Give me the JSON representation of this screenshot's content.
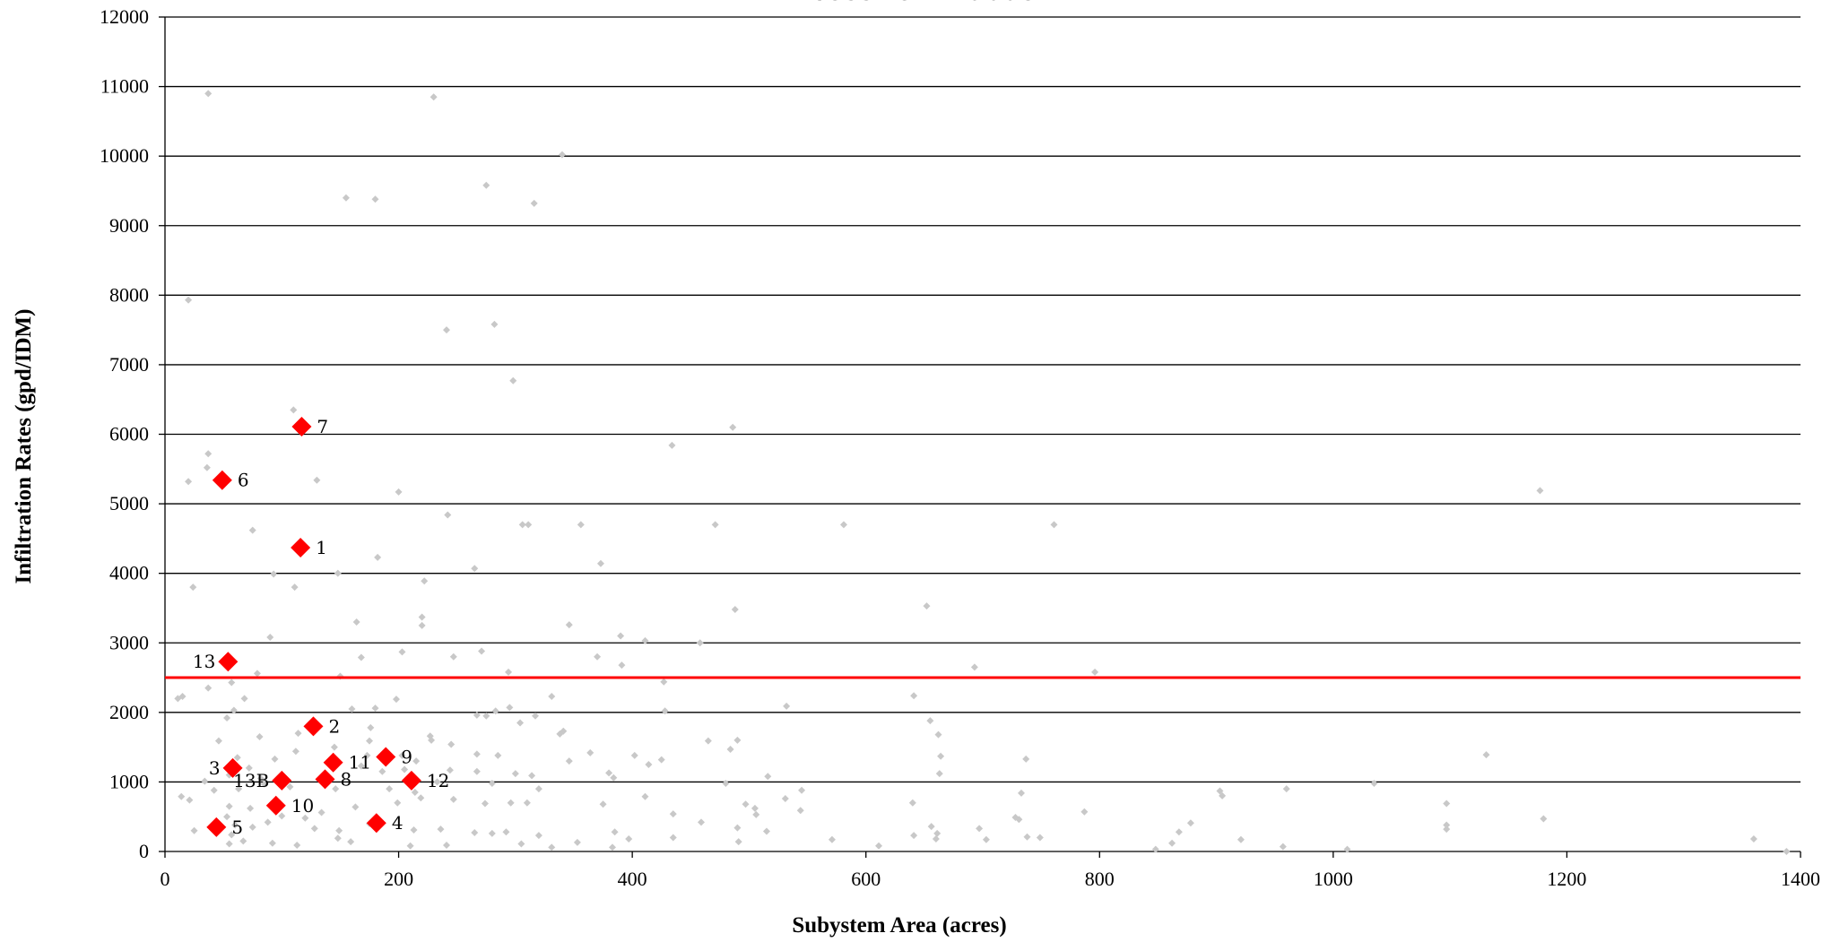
{
  "chart_data": {
    "type": "scatter",
    "title": "Excessive Infiltration",
    "xlabel": "Subystem Area (acres)",
    "ylabel": "Infiltration Rates (gpd/IDM)",
    "xlim": [
      0,
      1400
    ],
    "ylim": [
      0,
      12000
    ],
    "x_ticks": [
      0,
      200,
      400,
      600,
      800,
      1000,
      1200,
      1400
    ],
    "y_ticks": [
      0,
      1000,
      2000,
      3000,
      4000,
      5000,
      6000,
      7000,
      8000,
      9000,
      10000,
      11000,
      12000
    ],
    "grid": "horizontal",
    "threshold": {
      "y": 2500,
      "color": "#ff0000"
    },
    "colors": {
      "background_series": "#c8c8c8",
      "highlight_series": "#ff0000"
    },
    "series": [
      {
        "values": [
          [
            37,
            10900
          ],
          [
            230,
            10850
          ],
          [
            340,
            10020
          ],
          [
            275,
            9580
          ],
          [
            155,
            9400
          ],
          [
            180,
            9380
          ],
          [
            316,
            9320
          ],
          [
            20,
            7930
          ],
          [
            282,
            7580
          ],
          [
            241,
            7500
          ],
          [
            298,
            6770
          ],
          [
            110,
            6350
          ],
          [
            486,
            6100
          ],
          [
            37,
            5720
          ],
          [
            36,
            5520
          ],
          [
            20,
            5320
          ],
          [
            130,
            5340
          ],
          [
            434,
            5840
          ],
          [
            200,
            5170
          ],
          [
            1177,
            5190
          ],
          [
            242,
            4840
          ],
          [
            306,
            4700
          ],
          [
            311,
            4700
          ],
          [
            356,
            4700
          ],
          [
            471,
            4700
          ],
          [
            581,
            4700
          ],
          [
            761,
            4700
          ],
          [
            75,
            4620
          ],
          [
            182,
            4230
          ],
          [
            373,
            4140
          ],
          [
            265,
            4070
          ],
          [
            148,
            4000
          ],
          [
            93,
            3990
          ],
          [
            222,
            3890
          ],
          [
            111,
            3800
          ],
          [
            24,
            3800
          ],
          [
            488,
            3480
          ],
          [
            652,
            3530
          ],
          [
            220,
            3370
          ],
          [
            220,
            3250
          ],
          [
            164,
            3300
          ],
          [
            346,
            3260
          ],
          [
            90,
            3080
          ],
          [
            390,
            3100
          ],
          [
            411,
            3030
          ],
          [
            458,
            3000
          ],
          [
            203,
            2870
          ],
          [
            271,
            2880
          ],
          [
            168,
            2790
          ],
          [
            247,
            2800
          ],
          [
            370,
            2800
          ],
          [
            391,
            2680
          ],
          [
            693,
            2650
          ],
          [
            79,
            2560
          ],
          [
            150,
            2520
          ],
          [
            294,
            2580
          ],
          [
            796,
            2580
          ],
          [
            57,
            2430
          ],
          [
            427,
            2440
          ],
          [
            37,
            2350
          ],
          [
            11,
            2200
          ],
          [
            15,
            2230
          ],
          [
            68,
            2200
          ],
          [
            198,
            2190
          ],
          [
            641,
            2240
          ],
          [
            331,
            2230
          ],
          [
            180,
            2060
          ],
          [
            59,
            2030
          ],
          [
            53,
            1920
          ],
          [
            160,
            2050
          ],
          [
            283,
            2020
          ],
          [
            295,
            2070
          ],
          [
            267,
            1960
          ],
          [
            275,
            1950
          ],
          [
            317,
            1950
          ],
          [
            428,
            2020
          ],
          [
            532,
            2090
          ],
          [
            655,
            1880
          ],
          [
            304,
            1850
          ],
          [
            176,
            1780
          ],
          [
            114,
            1700
          ],
          [
            81,
            1650
          ],
          [
            46,
            1590
          ],
          [
            227,
            1660
          ],
          [
            338,
            1690
          ],
          [
            341,
            1730
          ],
          [
            465,
            1590
          ],
          [
            484,
            1470
          ],
          [
            490,
            1600
          ],
          [
            662,
            1680
          ],
          [
            228,
            1600
          ],
          [
            175,
            1590
          ],
          [
            145,
            1500
          ],
          [
            112,
            1440
          ],
          [
            94,
            1330
          ],
          [
            62,
            1350
          ],
          [
            72,
            1200
          ],
          [
            55,
            1100
          ],
          [
            82,
            1050
          ],
          [
            173,
            1380
          ],
          [
            203,
            1380
          ],
          [
            215,
            1300
          ],
          [
            245,
            1540
          ],
          [
            267,
            1400
          ],
          [
            285,
            1380
          ],
          [
            346,
            1300
          ],
          [
            364,
            1420
          ],
          [
            402,
            1380
          ],
          [
            425,
            1320
          ],
          [
            664,
            1370
          ],
          [
            737,
            1330
          ],
          [
            1131,
            1390
          ],
          [
            168,
            1230
          ],
          [
            186,
            1150
          ],
          [
            205,
            1180
          ],
          [
            244,
            1170
          ],
          [
            267,
            1150
          ],
          [
            300,
            1120
          ],
          [
            314,
            1090
          ],
          [
            380,
            1130
          ],
          [
            414,
            1250
          ],
          [
            480,
            980
          ],
          [
            516,
            1080
          ],
          [
            663,
            1120
          ],
          [
            1035,
            980
          ],
          [
            34,
            1010
          ],
          [
            42,
            880
          ],
          [
            63,
            900
          ],
          [
            85,
            970
          ],
          [
            107,
            930
          ],
          [
            146,
            900
          ],
          [
            192,
            900
          ],
          [
            214,
            850
          ],
          [
            233,
            1000
          ],
          [
            280,
            980
          ],
          [
            320,
            900
          ],
          [
            384,
            1060
          ],
          [
            531,
            760
          ],
          [
            545,
            880
          ],
          [
            733,
            840
          ],
          [
            903,
            870
          ],
          [
            905,
            800
          ],
          [
            960,
            900
          ],
          [
            1097,
            690
          ],
          [
            14,
            790
          ],
          [
            21,
            740
          ],
          [
            55,
            650
          ],
          [
            73,
            620
          ],
          [
            100,
            510
          ],
          [
            134,
            560
          ],
          [
            163,
            640
          ],
          [
            199,
            700
          ],
          [
            219,
            770
          ],
          [
            247,
            750
          ],
          [
            274,
            690
          ],
          [
            296,
            700
          ],
          [
            310,
            700
          ],
          [
            375,
            680
          ],
          [
            411,
            790
          ],
          [
            497,
            680
          ],
          [
            505,
            620
          ],
          [
            544,
            590
          ],
          [
            640,
            700
          ],
          [
            728,
            490
          ],
          [
            787,
            570
          ],
          [
            25,
            300
          ],
          [
            53,
            500
          ],
          [
            60,
            380
          ],
          [
            75,
            350
          ],
          [
            88,
            420
          ],
          [
            120,
            480
          ],
          [
            149,
            300
          ],
          [
            175,
            400
          ],
          [
            213,
            310
          ],
          [
            236,
            320
          ],
          [
            265,
            270
          ],
          [
            292,
            280
          ],
          [
            320,
            230
          ],
          [
            385,
            280
          ],
          [
            435,
            540
          ],
          [
            459,
            420
          ],
          [
            490,
            340
          ],
          [
            506,
            530
          ],
          [
            515,
            290
          ],
          [
            656,
            360
          ],
          [
            661,
            260
          ],
          [
            697,
            330
          ],
          [
            731,
            460
          ],
          [
            878,
            410
          ],
          [
            868,
            280
          ],
          [
            957,
            70
          ],
          [
            1097,
            320
          ],
          [
            1097,
            380
          ],
          [
            1180,
            470
          ],
          [
            1360,
            180
          ],
          [
            1388,
            0
          ],
          [
            55,
            110
          ],
          [
            67,
            150
          ],
          [
            92,
            120
          ],
          [
            113,
            90
          ],
          [
            148,
            190
          ],
          [
            159,
            140
          ],
          [
            210,
            80
          ],
          [
            241,
            90
          ],
          [
            305,
            110
          ],
          [
            331,
            60
          ],
          [
            353,
            130
          ],
          [
            397,
            180
          ],
          [
            435,
            200
          ],
          [
            491,
            140
          ],
          [
            571,
            170
          ],
          [
            611,
            80
          ],
          [
            660,
            180
          ],
          [
            703,
            170
          ],
          [
            749,
            200
          ],
          [
            848,
            30
          ],
          [
            862,
            120
          ],
          [
            921,
            170
          ],
          [
            1012,
            30
          ],
          [
            738,
            210
          ],
          [
            641,
            230
          ],
          [
            383,
            60
          ],
          [
            280,
            260
          ],
          [
            57,
            240
          ],
          [
            128,
            330
          ]
        ]
      },
      {
        "values": [
          [
            116,
            4370
          ],
          [
            127,
            1800
          ],
          [
            58,
            1200
          ],
          [
            181,
            410
          ],
          [
            44,
            350
          ],
          [
            49,
            5340
          ],
          [
            117,
            6110
          ],
          [
            137,
            1040
          ],
          [
            189,
            1360
          ],
          [
            95,
            660
          ],
          [
            144,
            1280
          ],
          [
            211,
            1020
          ],
          [
            54,
            2730
          ],
          [
            100,
            1020
          ]
        ],
        "labels": [
          "1",
          "2",
          "3",
          "4",
          "5",
          "6",
          "7",
          "8",
          "9",
          "10",
          "11",
          "12",
          "13",
          "13B"
        ]
      }
    ]
  }
}
